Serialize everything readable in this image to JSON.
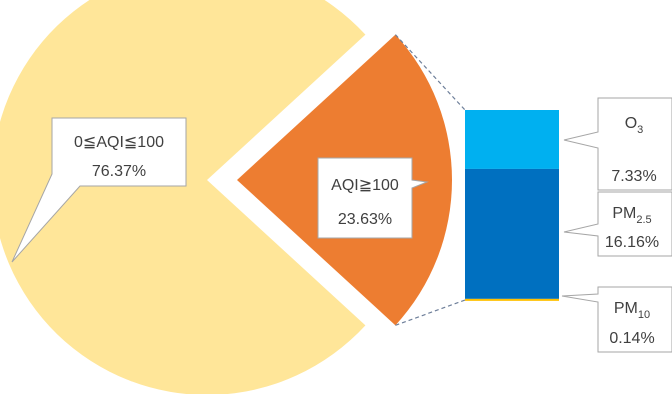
{
  "chart_data": {
    "type": "pie",
    "slices": [
      {
        "label": "0≦AQI≦100",
        "value": 76.37,
        "value_text": "76.37%",
        "color": "#FFE699"
      },
      {
        "label": "AQI≧100",
        "value": 23.63,
        "value_text": "23.63%",
        "color": "#ED7D31",
        "exploded": true
      }
    ],
    "breakdown_bar": {
      "of_slice": "AQI≧100",
      "segments": [
        {
          "base": "O",
          "sub": "3",
          "value": 7.33,
          "value_text": "7.33%",
          "color": "#00B0F0"
        },
        {
          "base": "PM",
          "sub": "2.5",
          "value": 16.16,
          "value_text": "16.16%",
          "color": "#0070C0"
        },
        {
          "base": "PM",
          "sub": "10",
          "value": 0.14,
          "value_text": "0.14%",
          "color": "#FFC000"
        }
      ]
    },
    "connector_color": "#6E7F9A",
    "callout_border": "#A6A6A6",
    "title": "",
    "legend": "none"
  }
}
